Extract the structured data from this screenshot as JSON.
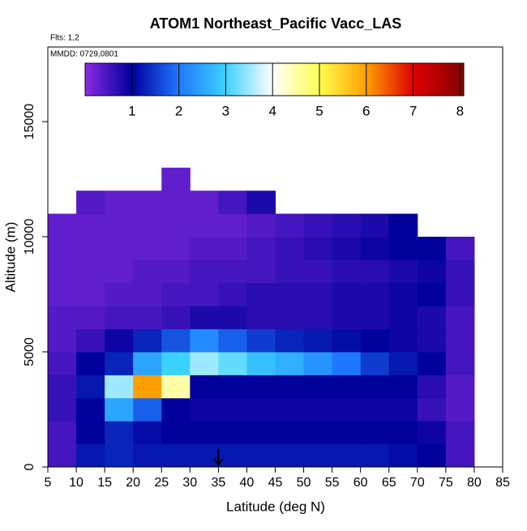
{
  "chart_data": {
    "type": "heatmap",
    "title": "ATOM1 Northeast_Pacific Vacc_LAS",
    "annotations": [
      "Flts: 1,2",
      "MMDD: 0729,0801"
    ],
    "xlabel": "Latitude (deg N)",
    "ylabel": "Altitude (m)",
    "xlim": [
      5,
      85
    ],
    "ylim": [
      0,
      18240
    ],
    "xticks": [
      5,
      10,
      15,
      20,
      25,
      30,
      35,
      40,
      45,
      50,
      55,
      60,
      65,
      70,
      75,
      80,
      85
    ],
    "yticks": [
      0,
      5000,
      10000,
      15000
    ],
    "x_edges": [
      5,
      10,
      15,
      20,
      25,
      30,
      35,
      40,
      45,
      50,
      55,
      60,
      65,
      70,
      75,
      80
    ],
    "y_edges": [
      0,
      1000,
      2000,
      3000,
      4000,
      5000,
      6000,
      7000,
      8000,
      9000,
      10000,
      11000,
      12000,
      13000
    ],
    "z": [
      [
        0.5,
        1.2,
        1.3,
        1.2,
        1.2,
        1.2,
        1.2,
        1.2,
        1.2,
        1.2,
        1.2,
        1.2,
        1.1,
        1.0,
        0.5
      ],
      [
        0.5,
        1.0,
        1.3,
        1.1,
        1.0,
        1.0,
        1.0,
        1.0,
        1.0,
        1.0,
        1.0,
        1.0,
        1.0,
        0.9,
        0.5
      ],
      [
        0.6,
        1.0,
        2.5,
        1.8,
        1.0,
        0.9,
        0.9,
        0.9,
        0.9,
        0.9,
        0.9,
        0.9,
        0.9,
        0.6,
        0.4
      ],
      [
        0.6,
        1.2,
        3.5,
        6.0,
        4.5,
        1.0,
        1.0,
        1.0,
        1.0,
        1.0,
        1.0,
        1.0,
        1.0,
        0.7,
        0.4
      ],
      [
        0.5,
        1.0,
        1.3,
        2.5,
        3.0,
        3.5,
        3.2,
        2.8,
        2.6,
        2.3,
        2.0,
        1.5,
        1.2,
        1.0,
        0.5
      ],
      [
        0.4,
        0.6,
        0.9,
        1.3,
        1.7,
        2.2,
        1.8,
        1.5,
        1.3,
        1.2,
        1.1,
        1.0,
        0.9,
        0.8,
        0.5
      ],
      [
        0.4,
        0.4,
        0.5,
        0.5,
        0.6,
        0.8,
        0.8,
        0.7,
        0.7,
        0.7,
        0.8,
        0.8,
        0.9,
        0.8,
        0.5
      ],
      [
        0.3,
        0.3,
        0.4,
        0.4,
        0.5,
        0.5,
        0.6,
        0.7,
        0.7,
        0.7,
        0.8,
        0.8,
        0.9,
        1.0,
        0.6
      ],
      [
        0.3,
        0.3,
        0.3,
        0.4,
        0.4,
        0.5,
        0.5,
        0.5,
        0.6,
        0.6,
        0.7,
        0.7,
        0.8,
        0.9,
        0.6
      ],
      [
        0.3,
        0.3,
        0.3,
        0.3,
        0.3,
        0.4,
        0.4,
        0.5,
        0.6,
        0.7,
        0.8,
        0.9,
        1.0,
        1.0,
        0.5
      ],
      [
        0.3,
        0.3,
        0.3,
        0.3,
        0.3,
        0.3,
        0.3,
        0.4,
        0.5,
        0.6,
        0.7,
        0.8,
        1.0,
        null,
        null
      ],
      [
        null,
        0.4,
        0.3,
        0.3,
        0.3,
        0.3,
        0.5,
        0.8,
        null,
        null,
        null,
        null,
        null,
        null,
        null
      ],
      [
        null,
        null,
        null,
        null,
        0.3,
        null,
        null,
        null,
        null,
        null,
        null,
        null,
        null,
        null,
        null
      ]
    ],
    "colorscale": [
      [
        0,
        "#8a2be2"
      ],
      [
        1,
        "#00009c"
      ],
      [
        2,
        "#1e78ff"
      ],
      [
        3,
        "#3cd2ff"
      ],
      [
        4,
        "#ffffff"
      ],
      [
        5,
        "#ffff50"
      ],
      [
        6,
        "#ffa000"
      ],
      [
        7,
        "#e00000"
      ],
      [
        8,
        "#8b0000"
      ]
    ],
    "colorbar_lim": [
      0,
      8.08
    ],
    "colorbar_ticks": [
      1,
      2,
      3,
      4,
      5,
      6,
      7,
      8
    ],
    "arrow_x": 35
  }
}
